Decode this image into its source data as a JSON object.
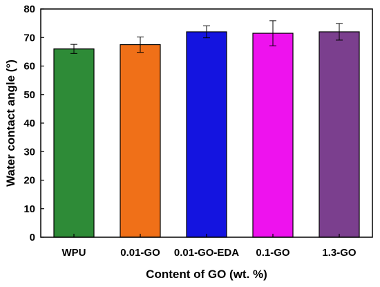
{
  "chart_data": {
    "type": "bar",
    "categories": [
      "WPU",
      "0.01-GO",
      "0.01-GO-EDA",
      "0.1-GO",
      "1.3-GO"
    ],
    "series": [
      {
        "values": [
          66.0,
          67.5,
          72.0,
          71.5,
          72.0
        ],
        "errors": [
          1.6,
          2.7,
          2.1,
          4.4,
          2.9
        ],
        "colors": [
          "#2e8b37",
          "#f07018",
          "#1414e0",
          "#ee12ee",
          "#7b3f8e"
        ]
      }
    ],
    "xlabel": "Content of GO (wt. %)",
    "ylabel": "Water contact angle (°)",
    "ylim": [
      0,
      80
    ],
    "yticks": [
      0,
      10,
      20,
      30,
      40,
      50,
      60,
      70,
      80
    ],
    "grid": false,
    "legend": "none",
    "error_bars": true
  }
}
